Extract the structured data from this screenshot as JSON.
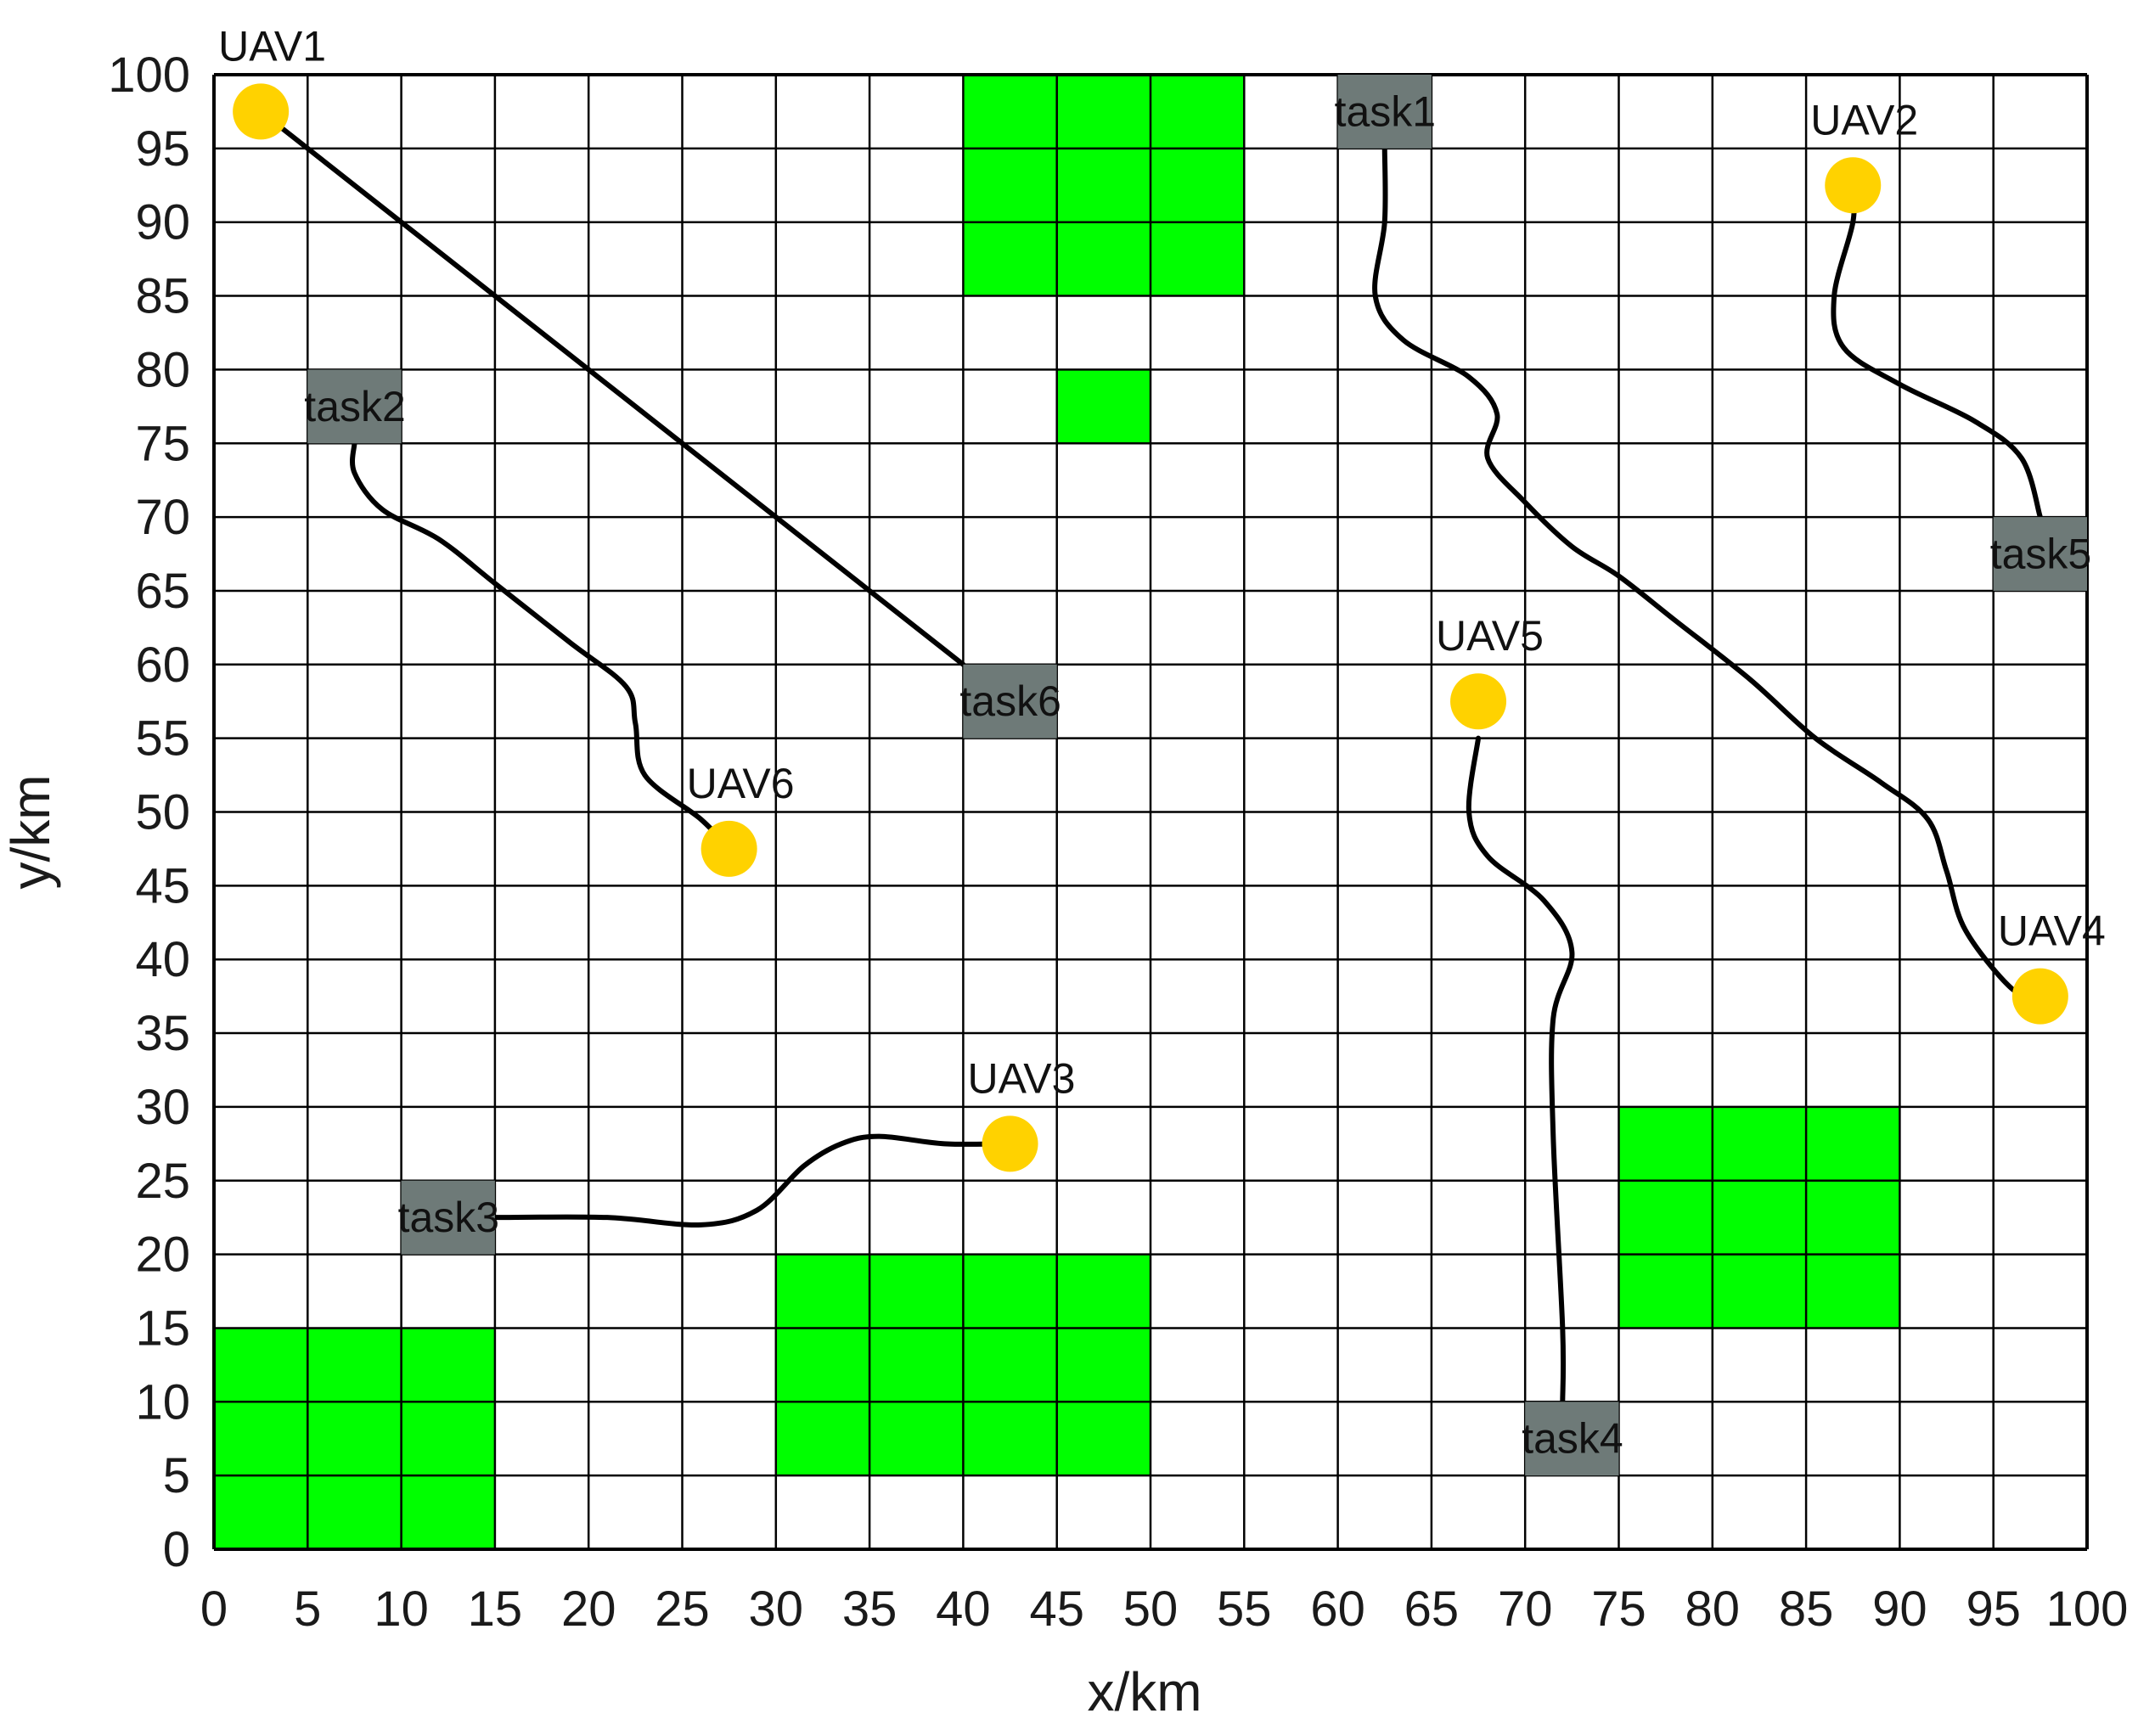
{
  "chart_data": {
    "type": "scatter",
    "title": "",
    "xlabel": "x/km",
    "ylabel": "y/km",
    "xlim": [
      0,
      100
    ],
    "ylim": [
      0,
      100
    ],
    "grid_step": 5,
    "grid": true,
    "xticks": [
      0,
      5,
      10,
      15,
      20,
      25,
      30,
      35,
      40,
      45,
      50,
      55,
      60,
      65,
      70,
      75,
      80,
      85,
      90,
      95,
      100
    ],
    "yticks": [
      0,
      5,
      10,
      15,
      20,
      25,
      30,
      35,
      40,
      45,
      50,
      55,
      60,
      65,
      70,
      75,
      80,
      85,
      90,
      95,
      100
    ],
    "colors": {
      "obstacle": "#00ff00",
      "task": "#6e7a78",
      "uav": "#ffd200",
      "path": "#000000",
      "grid": "#000000"
    },
    "obstacles": [
      {
        "x": [
          40,
          55
        ],
        "y": [
          85,
          100
        ]
      },
      {
        "x": [
          45,
          50
        ],
        "y": [
          75,
          80
        ]
      },
      {
        "x": [
          0,
          15
        ],
        "y": [
          0,
          15
        ]
      },
      {
        "x": [
          30,
          50
        ],
        "y": [
          5,
          20
        ]
      },
      {
        "x": [
          75,
          90
        ],
        "y": [
          15,
          30
        ]
      }
    ],
    "uavs": [
      {
        "label": "UAV1",
        "x": 2.5,
        "y": 97.5
      },
      {
        "label": "UAV2",
        "x": 87.5,
        "y": 92.5
      },
      {
        "label": "UAV3",
        "x": 42.5,
        "y": 27.5
      },
      {
        "label": "UAV4",
        "x": 97.5,
        "y": 37.5
      },
      {
        "label": "UAV5",
        "x": 67.5,
        "y": 57.5
      },
      {
        "label": "UAV6",
        "x": 27.5,
        "y": 47.5
      }
    ],
    "tasks": [
      {
        "label": "task1",
        "x": 62.5,
        "y": 97.5
      },
      {
        "label": "task2",
        "x": 7.5,
        "y": 77.5
      },
      {
        "label": "task3",
        "x": 12.5,
        "y": 22.5
      },
      {
        "label": "task4",
        "x": 72.5,
        "y": 7.5
      },
      {
        "label": "task5",
        "x": 97.5,
        "y": 67.5
      },
      {
        "label": "task6",
        "x": 42.5,
        "y": 57.5
      }
    ],
    "paths": [
      {
        "from": "UAV1",
        "to": "task6",
        "points": [
          [
            2.5,
            97.5
          ],
          [
            40,
            60
          ]
        ]
      },
      {
        "from": "UAV2",
        "to": "task5",
        "points": [
          [
            87.5,
            92.5
          ],
          [
            87.5,
            90
          ],
          [
            86.5,
            85
          ],
          [
            87,
            81.5
          ],
          [
            90,
            79
          ],
          [
            94,
            76.5
          ],
          [
            96.5,
            74
          ],
          [
            97.5,
            70
          ]
        ]
      },
      {
        "from": "UAV3",
        "to": "task3",
        "points": [
          [
            42.5,
            27.5
          ],
          [
            39,
            27.5
          ],
          [
            35.5,
            28
          ],
          [
            33.5,
            27.5
          ],
          [
            31.5,
            26
          ],
          [
            29,
            23
          ],
          [
            26,
            22
          ],
          [
            21,
            22.5
          ],
          [
            15,
            22.5
          ]
        ]
      },
      {
        "from": "UAV4",
        "to": "task1",
        "points": [
          [
            97.5,
            37.5
          ],
          [
            96,
            38
          ],
          [
            93.5,
            42
          ],
          [
            92.5,
            46
          ],
          [
            91.5,
            49.5
          ],
          [
            89,
            52
          ],
          [
            85.5,
            55
          ],
          [
            82,
            59
          ],
          [
            78,
            63
          ],
          [
            75,
            66
          ],
          [
            72.5,
            68
          ],
          [
            70,
            71
          ],
          [
            68,
            74
          ],
          [
            68.5,
            77
          ],
          [
            67,
            79.5
          ],
          [
            63.5,
            82
          ],
          [
            62,
            85
          ],
          [
            62.5,
            90
          ],
          [
            62.5,
            95
          ]
        ]
      },
      {
        "from": "UAV5",
        "to": "task4",
        "points": [
          [
            67.5,
            55
          ],
          [
            67,
            50
          ],
          [
            68,
            47
          ],
          [
            71,
            44
          ],
          [
            72.5,
            40.5
          ],
          [
            71.5,
            36
          ],
          [
            71.5,
            28
          ],
          [
            72,
            15
          ],
          [
            72,
            10
          ]
        ]
      },
      {
        "from": "UAV6",
        "to": "task2",
        "points": [
          [
            27.5,
            47.5
          ],
          [
            26,
            49.5
          ],
          [
            23,
            52.5
          ],
          [
            22.5,
            56
          ],
          [
            22,
            58.5
          ],
          [
            19,
            61.5
          ],
          [
            15,
            65.5
          ],
          [
            12,
            68.5
          ],
          [
            9,
            70.5
          ],
          [
            7.5,
            73
          ],
          [
            7.5,
            75
          ]
        ]
      }
    ]
  }
}
